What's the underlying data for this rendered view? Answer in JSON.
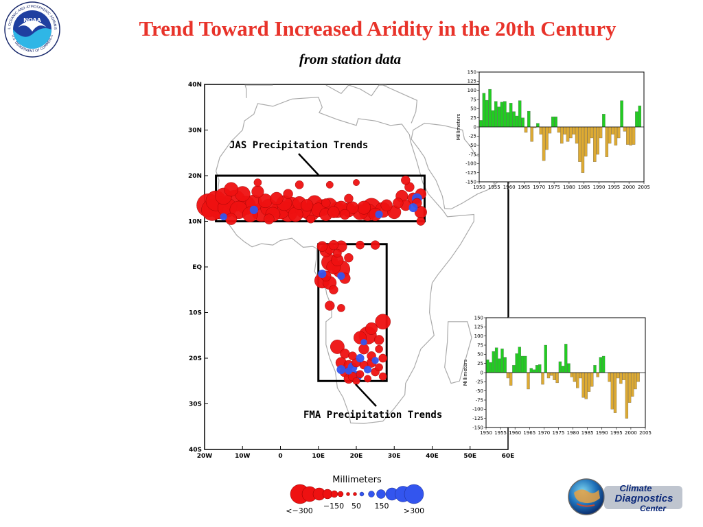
{
  "header": {
    "title": "Trend Toward Increased Aridity in the 20th Century",
    "subtitle": "from station data"
  },
  "logos": {
    "noaa_text": "NOAA",
    "noaa_ring_top": "NATIONAL OCEANIC AND ATMOSPHERIC ADMINISTRATION",
    "noaa_ring_bottom": "U.S. DEPARTMENT OF COMMERCE",
    "cdc_line1": "Climate",
    "cdc_line2": "Diagnostics",
    "cdc_line3": "Center"
  },
  "colors": {
    "title": "#e8332a",
    "negative_circle": "#ee1111",
    "positive_circle": "#3355ee",
    "bar_positive": "#22cc22",
    "bar_negative": "#ddaa33",
    "coast": "#aaaaaa"
  },
  "chart_data": [
    {
      "type": "scatter",
      "lon_ticks": [
        "20W",
        "10W",
        "0",
        "10E",
        "20E",
        "30E",
        "40E",
        "50E",
        "60E"
      ],
      "lat_ticks": [
        "40N",
        "30N",
        "20N",
        "10N",
        "EQ",
        "10S",
        "20S",
        "30S",
        "40S"
      ],
      "xlim": [
        -20,
        60
      ],
      "ylim": [
        -40,
        40
      ],
      "annotations": [
        "JAS Precipitation Trends",
        "FMA Precipitation Trends"
      ],
      "jas_box": {
        "lon": [
          -17,
          38
        ],
        "lat": [
          10,
          20
        ]
      },
      "fma_box": {
        "lon": [
          10,
          28
        ],
        "lat": [
          -25,
          5
        ]
      },
      "legend": {
        "title": "Millimeters",
        "labels": [
          "<−300",
          "−150",
          "50",
          "150",
          ">300"
        ]
      },
      "stations": [
        {
          "lon": -19,
          "lat": 13.5,
          "v": -330
        },
        {
          "lon": -18,
          "lat": 12.5,
          "v": -300
        },
        {
          "lon": -17,
          "lat": 14.5,
          "v": -280
        },
        {
          "lon": -16,
          "lat": 13,
          "v": -320
        },
        {
          "lon": -15,
          "lat": 15.5,
          "v": -220
        },
        {
          "lon": -14,
          "lat": 13,
          "v": -260
        },
        {
          "lon": -13,
          "lat": 17,
          "v": -180
        },
        {
          "lon": -12,
          "lat": 14.5,
          "v": -300
        },
        {
          "lon": -11,
          "lat": 12.5,
          "v": -240
        },
        {
          "lon": -10,
          "lat": 16,
          "v": -200
        },
        {
          "lon": -9,
          "lat": 13.5,
          "v": -250
        },
        {
          "lon": -8,
          "lat": 11.5,
          "v": -200
        },
        {
          "lon": -7,
          "lat": 14,
          "v": -220
        },
        {
          "lon": -6,
          "lat": 16.5,
          "v": -150
        },
        {
          "lon": -5,
          "lat": 12,
          "v": -260
        },
        {
          "lon": -4,
          "lat": 14.5,
          "v": -180
        },
        {
          "lon": -3,
          "lat": 13,
          "v": -230
        },
        {
          "lon": -2,
          "lat": 11.5,
          "v": -190
        },
        {
          "lon": -1,
          "lat": 15,
          "v": -160
        },
        {
          "lon": 0,
          "lat": 12.5,
          "v": -250
        },
        {
          "lon": 1,
          "lat": 14,
          "v": -200
        },
        {
          "lon": 2,
          "lat": 12,
          "v": -260
        },
        {
          "lon": 3,
          "lat": 13.5,
          "v": -220
        },
        {
          "lon": 4,
          "lat": 11.5,
          "v": -190
        },
        {
          "lon": 5,
          "lat": 14,
          "v": -170
        },
        {
          "lon": 6,
          "lat": 12.5,
          "v": -210
        },
        {
          "lon": 7,
          "lat": 13.5,
          "v": -150
        },
        {
          "lon": 8,
          "lat": 12,
          "v": -240
        },
        {
          "lon": 9,
          "lat": 14,
          "v": -200
        },
        {
          "lon": 10,
          "lat": 12.5,
          "v": -180
        },
        {
          "lon": 11,
          "lat": 13,
          "v": -220
        },
        {
          "lon": 12,
          "lat": 11.5,
          "v": -160
        },
        {
          "lon": 13,
          "lat": 13.5,
          "v": -190
        },
        {
          "lon": 14,
          "lat": 12,
          "v": -140
        },
        {
          "lon": 15,
          "lat": 12.5,
          "v": -210
        },
        {
          "lon": 16,
          "lat": 13,
          "v": -170
        },
        {
          "lon": 17,
          "lat": 11.5,
          "v": -120
        },
        {
          "lon": 18,
          "lat": 12.5,
          "v": -180
        },
        {
          "lon": 19,
          "lat": 13,
          "v": -150
        },
        {
          "lon": 21,
          "lat": 12,
          "v": -200
        },
        {
          "lon": 22,
          "lat": 13,
          "v": -170
        },
        {
          "lon": 23,
          "lat": 12,
          "v": -230
        },
        {
          "lon": 24,
          "lat": 13,
          "v": -260
        },
        {
          "lon": 25,
          "lat": 11.5,
          "v": -160
        },
        {
          "lon": 27,
          "lat": 12.5,
          "v": -200
        },
        {
          "lon": 28,
          "lat": 13.5,
          "v": -140
        },
        {
          "lon": 30,
          "lat": 12,
          "v": -170
        },
        {
          "lon": 31,
          "lat": 14,
          "v": -120
        },
        {
          "lon": 32,
          "lat": 15.5,
          "v": -150
        },
        {
          "lon": 33,
          "lat": 13.5,
          "v": -130
        },
        {
          "lon": 34,
          "lat": 17.5,
          "v": -110
        },
        {
          "lon": 35,
          "lat": 15,
          "v": -140
        },
        {
          "lon": 36,
          "lat": 14,
          "v": -110
        },
        {
          "lon": 37,
          "lat": 16,
          "v": -130
        },
        {
          "lon": 37,
          "lat": 12,
          "v": -150
        },
        {
          "lon": 37,
          "lat": 10,
          "v": -90
        },
        {
          "lon": -6,
          "lat": 18.5,
          "v": -80
        },
        {
          "lon": 5,
          "lat": 18,
          "v": -90
        },
        {
          "lon": 13,
          "lat": 18,
          "v": -70
        },
        {
          "lon": 20,
          "lat": 18.5,
          "v": -60
        },
        {
          "lon": 33,
          "lat": 19,
          "v": -100
        },
        {
          "lon": -3,
          "lat": 10.5,
          "v": -120
        },
        {
          "lon": 8,
          "lat": 10.5,
          "v": -90
        },
        {
          "lon": -7,
          "lat": 12.5,
          "v": 90
        },
        {
          "lon": 26,
          "lat": 11.5,
          "v": 80
        },
        {
          "lon": 36,
          "lat": 15,
          "v": 120
        },
        {
          "lon": 35,
          "lat": 13,
          "v": 100
        },
        {
          "lon": -15,
          "lat": 11,
          "v": 70
        },
        {
          "lon": 12,
          "lat": 14,
          "v": -100
        },
        {
          "lon": 2,
          "lat": 16,
          "v": -110
        },
        {
          "lon": 18,
          "lat": 15,
          "v": -100
        },
        {
          "lon": -13,
          "lat": 10.5,
          "v": -140
        },
        {
          "lon": 11,
          "lat": 4.5,
          "v": -120
        },
        {
          "lon": 12,
          "lat": 3.5,
          "v": -150
        },
        {
          "lon": 13,
          "lat": 4,
          "v": -130
        },
        {
          "lon": 14,
          "lat": 4.8,
          "v": -110
        },
        {
          "lon": 15,
          "lat": 3,
          "v": -90
        },
        {
          "lon": 16,
          "lat": 4.5,
          "v": -140
        },
        {
          "lon": 13,
          "lat": 1,
          "v": -220
        },
        {
          "lon": 14,
          "lat": 0,
          "v": -180
        },
        {
          "lon": 15,
          "lat": 1.5,
          "v": -150
        },
        {
          "lon": 16,
          "lat": -0.5,
          "v": -240
        },
        {
          "lon": 11,
          "lat": -3,
          "v": -200
        },
        {
          "lon": 12,
          "lat": -2,
          "v": -120
        },
        {
          "lon": 13,
          "lat": -3.5,
          "v": -170
        },
        {
          "lon": 11,
          "lat": -1.5,
          "v": 90
        },
        {
          "lon": 14,
          "lat": -5,
          "v": -100
        },
        {
          "lon": 17,
          "lat": -2.5,
          "v": -130
        },
        {
          "lon": 16,
          "lat": -2,
          "v": 80
        },
        {
          "lon": 13,
          "lat": -8.5,
          "v": -110
        },
        {
          "lon": 16,
          "lat": -9,
          "v": -80
        },
        {
          "lon": 18,
          "lat": 2,
          "v": -100
        },
        {
          "lon": 21,
          "lat": 4.8,
          "v": -90
        },
        {
          "lon": 25,
          "lat": 4.8,
          "v": -100
        },
        {
          "lon": 27,
          "lat": -12,
          "v": -200
        },
        {
          "lon": 24,
          "lat": -13.5,
          "v": -150
        },
        {
          "lon": 23,
          "lat": -15,
          "v": -240
        },
        {
          "lon": 21,
          "lat": -15.5,
          "v": -160
        },
        {
          "lon": 26,
          "lat": -16,
          "v": -110
        },
        {
          "lon": 15,
          "lat": -17.5,
          "v": -180
        },
        {
          "lon": 17,
          "lat": -19,
          "v": -110
        },
        {
          "lon": 19,
          "lat": -19.5,
          "v": -90
        },
        {
          "lon": 22,
          "lat": -18,
          "v": -120
        },
        {
          "lon": 24,
          "lat": -19.5,
          "v": -100
        },
        {
          "lon": 26,
          "lat": -18,
          "v": -80
        },
        {
          "lon": 27,
          "lat": -20,
          "v": -90
        },
        {
          "lon": 16,
          "lat": -21,
          "v": -130
        },
        {
          "lon": 18,
          "lat": -21.5,
          "v": -110
        },
        {
          "lon": 20,
          "lat": -21,
          "v": -100
        },
        {
          "lon": 22,
          "lat": -21.5,
          "v": -90
        },
        {
          "lon": 24,
          "lat": -21,
          "v": -110
        },
        {
          "lon": 26,
          "lat": -22,
          "v": -80
        },
        {
          "lon": 17,
          "lat": -23,
          "v": -120
        },
        {
          "lon": 19,
          "lat": -24,
          "v": -100
        },
        {
          "lon": 21,
          "lat": -23.5,
          "v": -80
        },
        {
          "lon": 23,
          "lat": -24.5,
          "v": -70
        },
        {
          "lon": 25,
          "lat": -23,
          "v": -90
        },
        {
          "lon": 27,
          "lat": -24,
          "v": -80
        },
        {
          "lon": 18,
          "lat": -24.5,
          "v": -110
        },
        {
          "lon": 20,
          "lat": -25,
          "v": -70
        },
        {
          "lon": 16,
          "lat": -22.5,
          "v": 100
        },
        {
          "lon": 19,
          "lat": -22,
          "v": 110
        },
        {
          "lon": 21,
          "lat": -20,
          "v": 90
        },
        {
          "lon": 23,
          "lat": -22.5,
          "v": 80
        },
        {
          "lon": 20,
          "lat": -24,
          "v": 130
        },
        {
          "lon": 18,
          "lat": -22.8,
          "v": 70
        },
        {
          "lon": 25,
          "lat": -20.5,
          "v": 70
        },
        {
          "lon": 22,
          "lat": -16.5,
          "v": 60
        }
      ]
    },
    {
      "type": "bar",
      "ylabel": "Millimeters",
      "ylim": [
        -150,
        150
      ],
      "yticks": [
        150,
        125,
        100,
        75,
        50,
        25,
        0,
        -25,
        -50,
        -75,
        -100,
        -125,
        -150
      ],
      "xlim": [
        1950,
        2005
      ],
      "xticks": [
        1950,
        1955,
        1960,
        1965,
        1970,
        1975,
        1980,
        1985,
        1990,
        1995,
        2000,
        2005
      ],
      "x": [
        1950,
        1951,
        1952,
        1953,
        1954,
        1955,
        1956,
        1957,
        1958,
        1959,
        1960,
        1961,
        1962,
        1963,
        1964,
        1965,
        1966,
        1967,
        1968,
        1969,
        1970,
        1971,
        1972,
        1973,
        1974,
        1975,
        1976,
        1977,
        1978,
        1979,
        1980,
        1981,
        1982,
        1983,
        1984,
        1985,
        1986,
        1987,
        1988,
        1989,
        1990,
        1991,
        1992,
        1993,
        1994,
        1995,
        1996,
        1997,
        1998,
        1999,
        2000,
        2001,
        2002,
        2003,
        2004
      ],
      "values": [
        18,
        92,
        73,
        103,
        45,
        70,
        55,
        68,
        70,
        40,
        65,
        42,
        30,
        72,
        25,
        -15,
        43,
        -40,
        -2,
        10,
        -20,
        -92,
        -62,
        -17,
        28,
        28,
        -15,
        -45,
        -20,
        -40,
        -30,
        -20,
        -45,
        -95,
        -125,
        -80,
        -45,
        -30,
        -95,
        -75,
        -30,
        35,
        -82,
        -45,
        -20,
        -50,
        -30,
        72,
        -12,
        -48,
        -50,
        -48,
        42,
        58,
        0
      ]
    },
    {
      "type": "bar",
      "ylabel": "Millimeters",
      "ylim": [
        -150,
        150
      ],
      "yticks": [
        150,
        125,
        100,
        75,
        50,
        25,
        0,
        -25,
        -50,
        -75,
        -100,
        -125,
        -150
      ],
      "xlim": [
        1950,
        2005
      ],
      "xticks": [
        1950,
        1955,
        1960,
        1965,
        1970,
        1975,
        1980,
        1985,
        1990,
        1995,
        2000,
        2005
      ],
      "x": [
        1950,
        1951,
        1952,
        1953,
        1954,
        1955,
        1956,
        1957,
        1958,
        1959,
        1960,
        1961,
        1962,
        1963,
        1964,
        1965,
        1966,
        1967,
        1968,
        1969,
        1970,
        1971,
        1972,
        1973,
        1974,
        1975,
        1976,
        1977,
        1978,
        1979,
        1980,
        1981,
        1982,
        1983,
        1984,
        1985,
        1986,
        1987,
        1988,
        1989,
        1990,
        1991,
        1992,
        1993,
        1994,
        1995,
        1996,
        1997,
        1998,
        1999,
        2000,
        2001,
        2002,
        2003,
        2004
      ],
      "values": [
        35,
        28,
        58,
        68,
        38,
        65,
        42,
        -15,
        -35,
        20,
        52,
        70,
        45,
        45,
        -45,
        12,
        8,
        20,
        22,
        -32,
        75,
        -15,
        -8,
        -20,
        -28,
        30,
        18,
        78,
        25,
        -12,
        -25,
        -42,
        -15,
        -68,
        -72,
        -52,
        -38,
        20,
        -12,
        42,
        45,
        0,
        -25,
        -100,
        -110,
        -15,
        -30,
        -20,
        -125,
        -82,
        -65,
        -45,
        -25,
        0,
        0
      ]
    }
  ]
}
